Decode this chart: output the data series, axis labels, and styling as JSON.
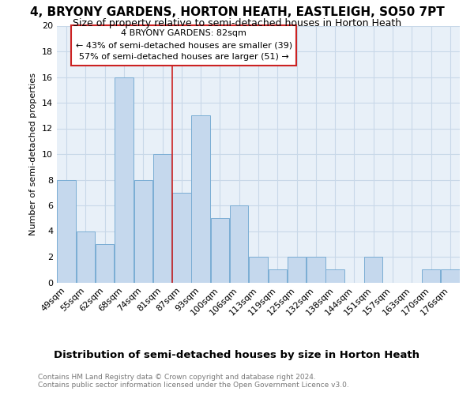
{
  "title": "4, BRYONY GARDENS, HORTON HEATH, EASTLEIGH, SO50 7PT",
  "subtitle": "Size of property relative to semi-detached houses in Horton Heath",
  "xlabel": "Distribution of semi-detached houses by size in Horton Heath",
  "ylabel": "Number of semi-detached properties",
  "footer": "Contains HM Land Registry data © Crown copyright and database right 2024.\nContains public sector information licensed under the Open Government Licence v3.0.",
  "categories": [
    "49sqm",
    "55sqm",
    "62sqm",
    "68sqm",
    "74sqm",
    "81sqm",
    "87sqm",
    "93sqm",
    "100sqm",
    "106sqm",
    "113sqm",
    "119sqm",
    "125sqm",
    "132sqm",
    "138sqm",
    "144sqm",
    "151sqm",
    "157sqm",
    "163sqm",
    "170sqm",
    "176sqm"
  ],
  "values": [
    8,
    4,
    3,
    16,
    8,
    10,
    7,
    13,
    5,
    6,
    2,
    1,
    2,
    2,
    1,
    0,
    2,
    0,
    0,
    1,
    1
  ],
  "bar_color": "#c5d8ed",
  "bar_edge_color": "#7aadd4",
  "annotation_text": "4 BRYONY GARDENS: 82sqm\n← 43% of semi-detached houses are smaller (39)\n57% of semi-detached houses are larger (51) →",
  "vline_x_index": 5.5,
  "vline_color": "#cc2222",
  "ylim": [
    0,
    20
  ],
  "yticks": [
    0,
    2,
    4,
    6,
    8,
    10,
    12,
    14,
    16,
    18,
    20
  ],
  "grid_color": "#c8d8e8",
  "bg_color": "#e8f0f8",
  "annotation_box_color": "white",
  "annotation_box_edge": "#cc2222",
  "title_fontsize": 11,
  "subtitle_fontsize": 9,
  "ylabel_fontsize": 8,
  "xlabel_fontsize": 9.5,
  "footer_fontsize": 6.5,
  "tick_fontsize": 8,
  "ann_fontsize": 8
}
